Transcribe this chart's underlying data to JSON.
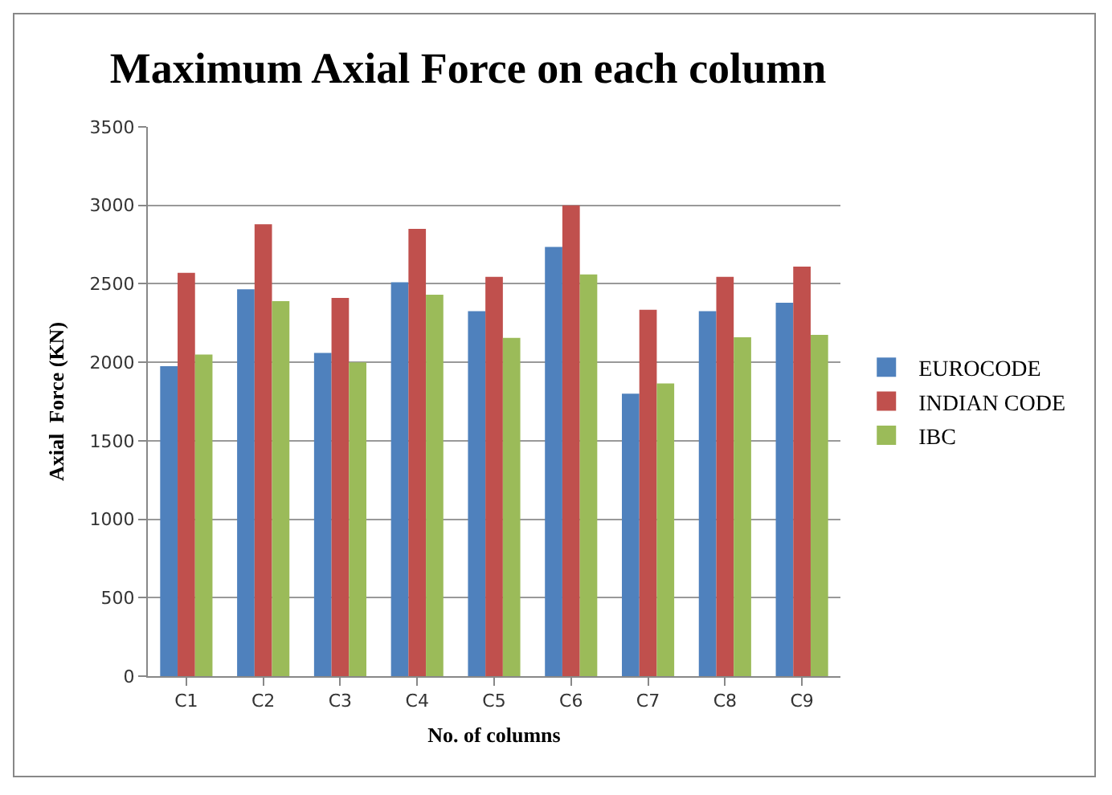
{
  "chart_data": {
    "type": "bar",
    "title": "Maximum Axial Force on each column",
    "xlabel": "No. of columns",
    "ylabel": "Axial  Force (KN)",
    "categories": [
      "C1",
      "C2",
      "C3",
      "C4",
      "C5",
      "C6",
      "C7",
      "C8",
      "C9"
    ],
    "series": [
      {
        "name": "EUROCODE",
        "color": "#4f81bd",
        "values": [
          1975,
          2465,
          2060,
          2510,
          2325,
          2735,
          1800,
          2325,
          2380
        ]
      },
      {
        "name": "INDIAN CODE",
        "color": "#c0504d",
        "values": [
          2570,
          2880,
          2410,
          2850,
          2545,
          3000,
          2335,
          2545,
          2610
        ]
      },
      {
        "name": "IBC",
        "color": "#9bbb59",
        "values": [
          2050,
          2390,
          2000,
          2430,
          2155,
          2560,
          1865,
          2160,
          2175
        ]
      }
    ],
    "ylim": [
      0,
      3500
    ],
    "yticks": [
      0,
      500,
      1000,
      1500,
      2000,
      2500,
      3000,
      3500
    ],
    "grid": "y",
    "legend": "right"
  }
}
